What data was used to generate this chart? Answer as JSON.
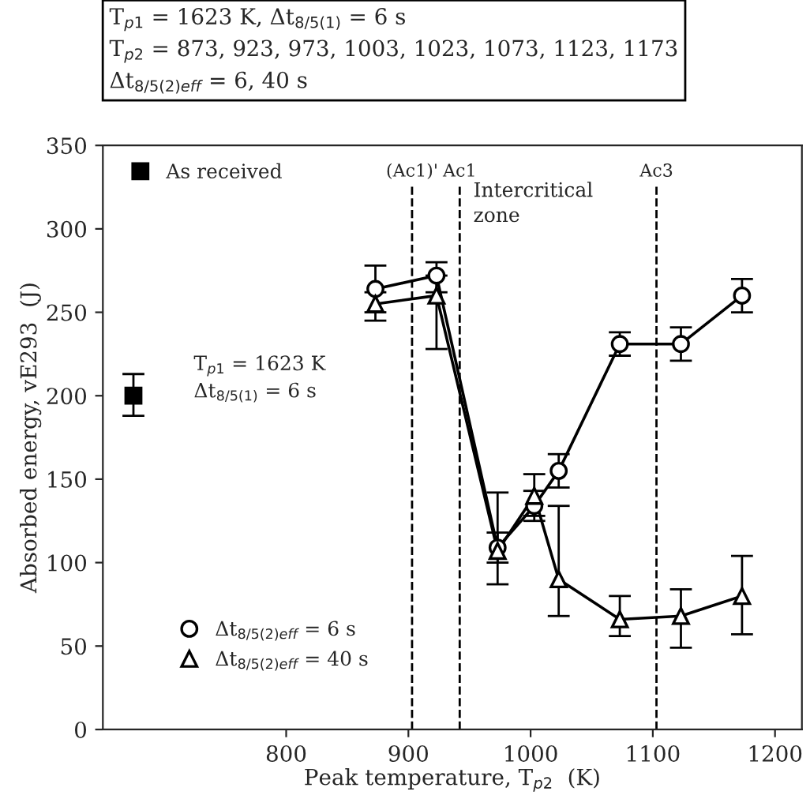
{
  "chart_data": {
    "type": "line",
    "title": "T$_{p1}$ = 1623 K, Δt$_{8/5(1)}$ = 6 s\nT$_{p2}$ = 873, 923, 973, 1003, 1023, 1073, 1123, 1173\nΔt$_{8/5(2)eff}$ = 6, 40 s",
    "xlabel": "Peak temperature, T$_{p2}$  (K)",
    "ylabel": "Absorbed energy, vE293  (J)",
    "xlim": [
      650,
      1222
    ],
    "xticks": [
      800,
      900,
      1000,
      1100,
      1200
    ],
    "ylim": [
      0,
      350
    ],
    "yticks": [
      0,
      50,
      100,
      150,
      200,
      250,
      300,
      350
    ],
    "grid": false,
    "legend": "left",
    "line_style": "solid",
    "series": [
      {
        "name": "Δt$_{8/5(2)eff}$ = 6 s",
        "color": "#000000",
        "marker": "circle",
        "x": [
          873,
          923,
          973,
          1003,
          1023,
          1073,
          1123,
          1173
        ],
        "values": [
          264,
          272,
          109,
          134,
          155,
          231,
          231,
          260
        ],
        "errors": [
          [
            250,
            278
          ],
          [
            262,
            280
          ],
          [
            100,
            118
          ],
          [
            125,
            143
          ],
          [
            145,
            165
          ],
          [
            224,
            238
          ],
          [
            221,
            241
          ],
          [
            250,
            270
          ]
        ]
      },
      {
        "name": "Δt$_{8/5(2)eff}$ = 40 s",
        "color": "#000000",
        "marker": "triangle",
        "x": [
          873,
          923,
          973,
          1003,
          1023,
          1073,
          1123,
          1173
        ],
        "values": [
          255,
          260,
          107,
          140,
          90,
          66,
          68,
          80
        ],
        "errors": [
          [
            245,
            262
          ],
          [
            228,
            272
          ],
          [
            87,
            142
          ],
          [
            128,
            153
          ],
          [
            68,
            134
          ],
          [
            56,
            80
          ],
          [
            49,
            84
          ],
          [
            57,
            104
          ]
        ]
      },
      {
        "name": "As received",
        "type": "scatter",
        "color": "#000000",
        "marker": "square",
        "x": [
          675
        ],
        "values": [
          200
        ],
        "errors": [
          [
            188,
            213
          ]
        ]
      }
    ],
    "ref_lines": [
      {
        "axis": "x",
        "value": 903,
        "label": "(Ac1)'",
        "line_style": "dashed"
      },
      {
        "axis": "x",
        "value": 942,
        "label": "Ac1",
        "line_style": "dashed"
      },
      {
        "axis": "x",
        "value": 1103,
        "label": "Ac3",
        "line_style": "dashed"
      }
    ],
    "annotations": [
      "T$_{p1}$ = 1623 K\nΔt$_{8/5(1)}$ = 6 s",
      "Intercritical\nzone"
    ]
  }
}
